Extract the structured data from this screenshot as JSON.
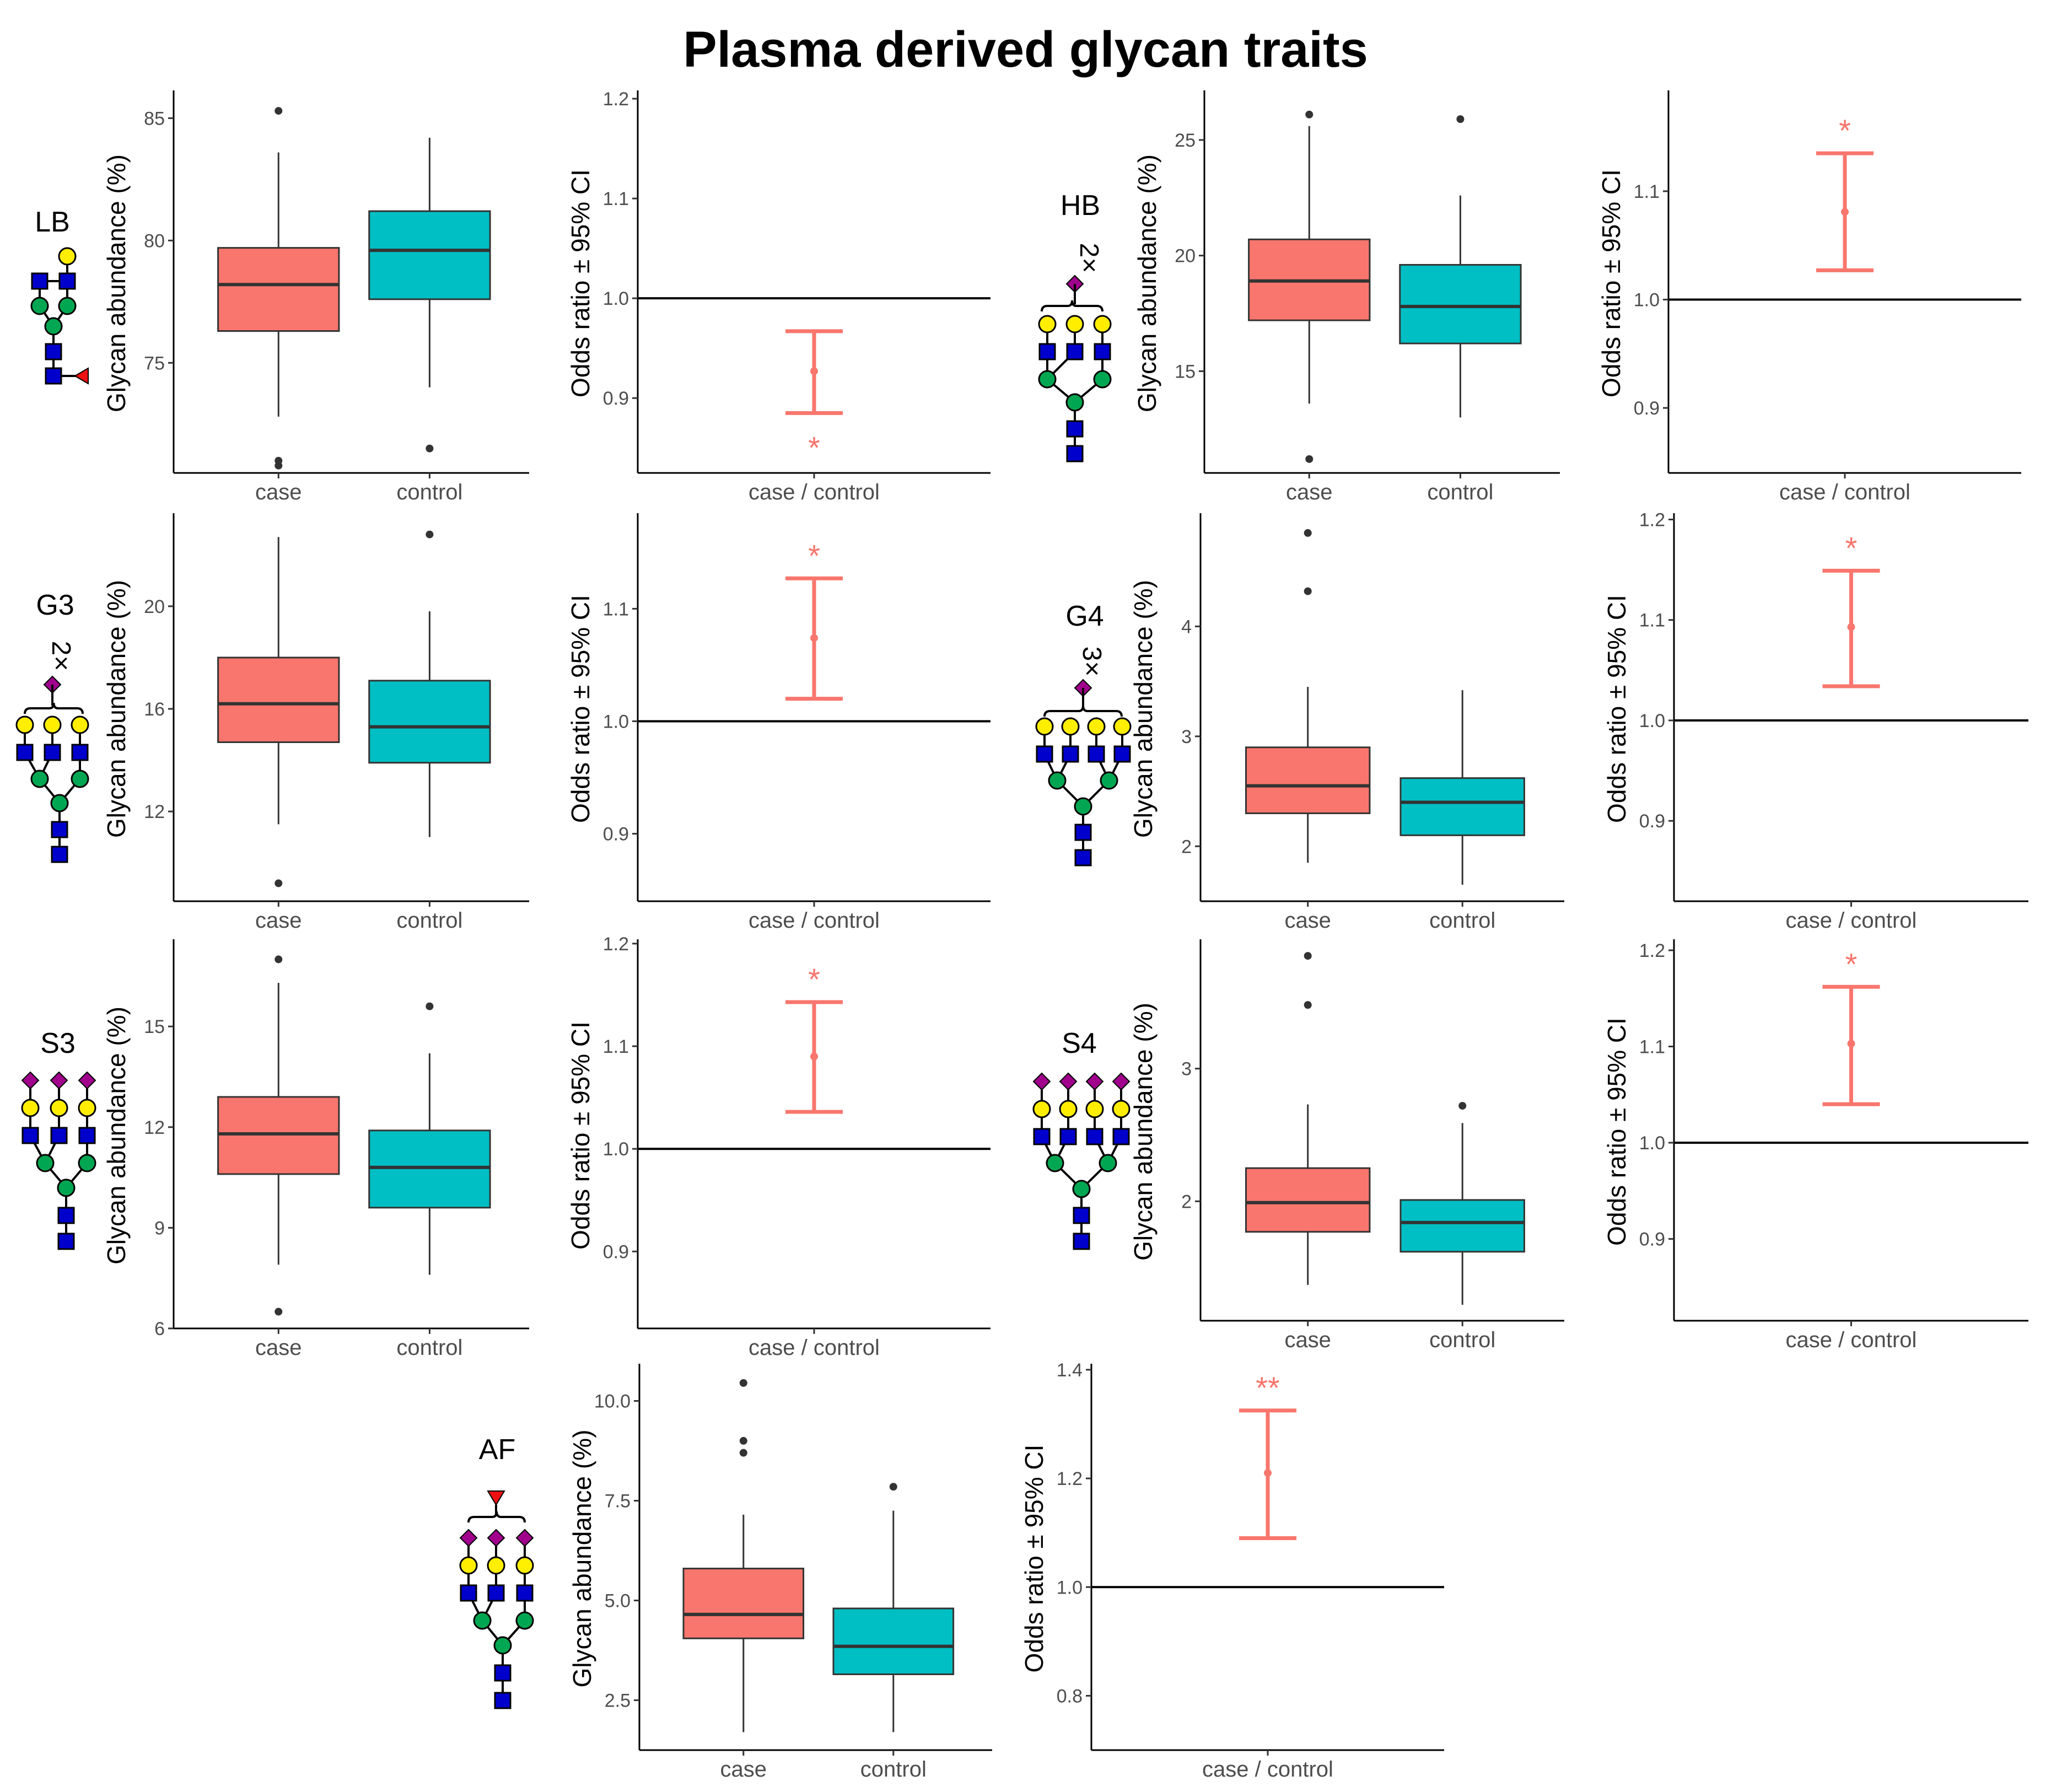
{
  "title": "Plasma derived glycan traits",
  "colors": {
    "case": "#F8766D",
    "control": "#00BFC4",
    "axis": "#333333",
    "star": "#F8766D"
  },
  "glycan_labels": {
    "LB": "LB",
    "HB": "HB",
    "G3": "G3",
    "G4": "G4",
    "S3": "S3",
    "S4": "S4",
    "AF": "AF",
    "HB_mult": "2×",
    "G3_mult": "2×",
    "G4_mult": "3×"
  },
  "chart_data": [
    {
      "id": "LB-box",
      "type": "box",
      "ylabel": "Glycan abundance (%)",
      "categories": [
        "case",
        "control"
      ],
      "ylim": [
        70.5,
        86
      ],
      "yticks": [
        75,
        80,
        85
      ],
      "ytick_labels": [
        "75",
        "80",
        "85"
      ],
      "boxes": [
        {
          "name": "case",
          "min": 72.8,
          "q1": 76.3,
          "median": 78.2,
          "q3": 79.7,
          "max": 83.6,
          "outliers": [
            85.3,
            71.0,
            70.8
          ]
        },
        {
          "name": "control",
          "min": 74.0,
          "q1": 77.6,
          "median": 79.6,
          "q3": 81.2,
          "max": 84.2,
          "outliers": [
            71.5
          ]
        }
      ]
    },
    {
      "id": "LB-or",
      "type": "errorbar",
      "ylabel": "Odds ratio ± 95% CI",
      "xlabel": "case / control",
      "ylim": [
        0.825,
        1.205
      ],
      "yticks": [
        0.9,
        1.0,
        1.1,
        1.2
      ],
      "ytick_labels": [
        "0.9",
        "1.0",
        "1.1",
        "1.2"
      ],
      "ref": 1.0,
      "or": 0.927,
      "lo": 0.885,
      "hi": 0.967,
      "sig": "*",
      "sig_pos": "below"
    },
    {
      "id": "HB-box",
      "type": "box",
      "ylabel": "Glycan abundance (%)",
      "categories": [
        "case",
        "control"
      ],
      "ylim": [
        10.6,
        27.0
      ],
      "yticks": [
        15,
        20,
        25
      ],
      "ytick_labels": [
        "15",
        "20",
        "25"
      ],
      "boxes": [
        {
          "name": "case",
          "min": 13.6,
          "q1": 17.2,
          "median": 18.9,
          "q3": 20.7,
          "max": 25.6,
          "outliers": [
            26.1,
            11.2
          ]
        },
        {
          "name": "control",
          "min": 13.0,
          "q1": 16.2,
          "median": 17.8,
          "q3": 19.6,
          "max": 22.6,
          "outliers": [
            25.9
          ]
        }
      ]
    },
    {
      "id": "HB-or",
      "type": "errorbar",
      "ylabel": "Odds ratio ± 95% CI",
      "xlabel": "case / control",
      "ylim": [
        0.84,
        1.19
      ],
      "yticks": [
        0.9,
        1.0,
        1.1
      ],
      "ytick_labels": [
        "0.9",
        "1.0",
        "1.1"
      ],
      "ref": 1.0,
      "or": 1.081,
      "lo": 1.027,
      "hi": 1.135,
      "sig": "*",
      "sig_pos": "above"
    },
    {
      "id": "G3-box",
      "type": "box",
      "ylabel": "Glycan abundance (%)",
      "categories": [
        "case",
        "control"
      ],
      "ylim": [
        8.5,
        23.5
      ],
      "yticks": [
        12,
        16,
        20
      ],
      "ytick_labels": [
        "12",
        "16",
        "20"
      ],
      "boxes": [
        {
          "name": "case",
          "min": 11.5,
          "q1": 14.7,
          "median": 16.2,
          "q3": 18.0,
          "max": 22.7,
          "outliers": [
            9.2
          ]
        },
        {
          "name": "control",
          "min": 11.0,
          "q1": 13.9,
          "median": 15.3,
          "q3": 17.1,
          "max": 19.8,
          "outliers": [
            22.8
          ]
        }
      ]
    },
    {
      "id": "G3-or",
      "type": "errorbar",
      "ylabel": "Odds ratio ± 95% CI",
      "xlabel": "case / control",
      "ylim": [
        0.84,
        1.182
      ],
      "yticks": [
        0.9,
        1.0,
        1.1
      ],
      "ytick_labels": [
        "0.9",
        "1.0",
        "1.1"
      ],
      "ref": 1.0,
      "or": 1.074,
      "lo": 1.02,
      "hi": 1.127,
      "sig": "*",
      "sig_pos": "above"
    },
    {
      "id": "G4-box",
      "type": "box",
      "ylabel": "Glycan abundance (%)",
      "categories": [
        "case",
        "control"
      ],
      "ylim": [
        1.5,
        5.0
      ],
      "yticks": [
        2,
        3,
        4
      ],
      "ytick_labels": [
        "2",
        "3",
        "4"
      ],
      "boxes": [
        {
          "name": "case",
          "min": 1.85,
          "q1": 2.3,
          "median": 2.55,
          "q3": 2.9,
          "max": 3.45,
          "outliers": [
            4.85,
            4.32
          ]
        },
        {
          "name": "control",
          "min": 1.65,
          "q1": 2.1,
          "median": 2.4,
          "q3": 2.62,
          "max": 3.42,
          "outliers": []
        }
      ]
    },
    {
      "id": "G4-or",
      "type": "errorbar",
      "ylabel": "Odds ratio ± 95% CI",
      "xlabel": "case / control",
      "ylim": [
        0.82,
        1.203
      ],
      "yticks": [
        0.9,
        1.0,
        1.1,
        1.2
      ],
      "ytick_labels": [
        "0.9",
        "1.0",
        "1.1",
        "1.2"
      ],
      "ref": 1.0,
      "or": 1.093,
      "lo": 1.034,
      "hi": 1.149,
      "sig": "*",
      "sig_pos": "above"
    },
    {
      "id": "S3-box",
      "type": "box",
      "ylabel": "Glycan abundance (%)",
      "categories": [
        "case",
        "control"
      ],
      "ylim": [
        6.0,
        17.5
      ],
      "yticks": [
        6,
        9,
        12,
        15
      ],
      "ytick_labels": [
        "6",
        "9",
        "12",
        "15"
      ],
      "boxes": [
        {
          "name": "case",
          "min": 7.9,
          "q1": 10.6,
          "median": 11.8,
          "q3": 12.9,
          "max": 16.3,
          "outliers": [
            17.0,
            6.5
          ]
        },
        {
          "name": "control",
          "min": 7.6,
          "q1": 9.6,
          "median": 10.8,
          "q3": 11.9,
          "max": 14.2,
          "outliers": [
            15.6
          ]
        }
      ]
    },
    {
      "id": "S3-or",
      "type": "errorbar",
      "ylabel": "Odds ratio ± 95% CI",
      "xlabel": "case / control",
      "ylim": [
        0.825,
        1.201
      ],
      "yticks": [
        0.9,
        1.0,
        1.1,
        1.2
      ],
      "ytick_labels": [
        "0.9",
        "1.0",
        "1.1",
        "1.2"
      ],
      "ref": 1.0,
      "or": 1.09,
      "lo": 1.036,
      "hi": 1.143,
      "sig": "*",
      "sig_pos": "above"
    },
    {
      "id": "S4-box",
      "type": "box",
      "ylabel": "Glycan abundance (%)",
      "categories": [
        "case",
        "control"
      ],
      "ylim": [
        1.1,
        3.95
      ],
      "yticks": [
        2,
        3
      ],
      "ytick_labels": [
        "2",
        "3"
      ],
      "boxes": [
        {
          "name": "case",
          "min": 1.37,
          "q1": 1.77,
          "median": 1.99,
          "q3": 2.25,
          "max": 2.73,
          "outliers": [
            3.85,
            3.48
          ]
        },
        {
          "name": "control",
          "min": 1.22,
          "q1": 1.62,
          "median": 1.84,
          "q3": 2.01,
          "max": 2.59,
          "outliers": [
            2.72
          ]
        }
      ]
    },
    {
      "id": "S4-or",
      "type": "errorbar",
      "ylabel": "Odds ratio ± 95% CI",
      "xlabel": "case / control",
      "ylim": [
        0.815,
        1.208
      ],
      "yticks": [
        0.9,
        1.0,
        1.1,
        1.2
      ],
      "ytick_labels": [
        "0.9",
        "1.0",
        "1.1",
        "1.2"
      ],
      "ref": 1.0,
      "or": 1.103,
      "lo": 1.04,
      "hi": 1.162,
      "sig": "*",
      "sig_pos": "above"
    },
    {
      "id": "AF-box",
      "type": "box",
      "ylabel": "Glycan abundance (%)",
      "categories": [
        "case",
        "control"
      ],
      "ylim": [
        1.25,
        10.85
      ],
      "yticks": [
        2.5,
        5.0,
        7.5,
        10.0
      ],
      "ytick_labels": [
        "2.5",
        "5.0",
        "7.5",
        "10.0"
      ],
      "boxes": [
        {
          "name": "case",
          "min": 1.7,
          "q1": 4.05,
          "median": 4.65,
          "q3": 5.8,
          "max": 7.15,
          "outliers": [
            10.45,
            9.0,
            8.7
          ]
        },
        {
          "name": "control",
          "min": 1.7,
          "q1": 3.15,
          "median": 3.85,
          "q3": 4.8,
          "max": 7.25,
          "outliers": [
            7.85
          ]
        }
      ]
    },
    {
      "id": "AF-or",
      "type": "errorbar",
      "ylabel": "Odds ratio ± 95% CI",
      "xlabel": "case / control",
      "ylim": [
        0.7,
        1.405
      ],
      "yticks": [
        0.8,
        1.0,
        1.2,
        1.4
      ],
      "ytick_labels": [
        "0.8",
        "1.0",
        "1.2",
        "1.4"
      ],
      "ref": 1.0,
      "or": 1.21,
      "lo": 1.09,
      "hi": 1.325,
      "sig": "**",
      "sig_pos": "above"
    }
  ]
}
